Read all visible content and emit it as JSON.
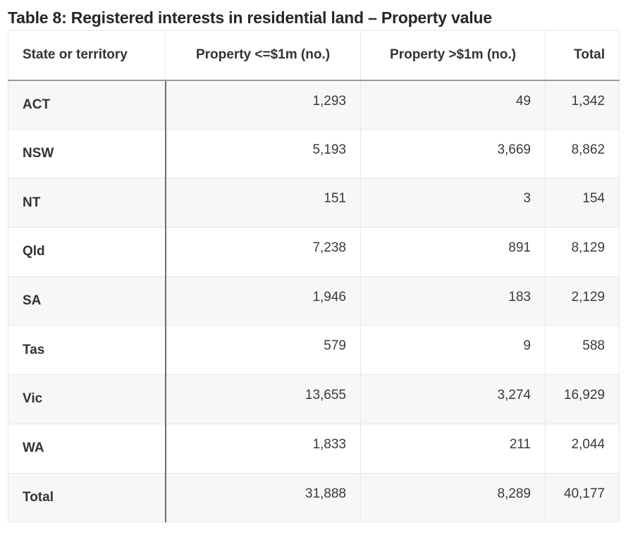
{
  "title": "Table 8: Registered interests in residential land – Property value",
  "table": {
    "headers": [
      "State or territory",
      "Property <=$1m (no.)",
      "Property >$1m (no.)",
      "Total"
    ],
    "rows": [
      {
        "state": "ACT",
        "le1m": "1,293",
        "gt1m": "49",
        "total": "1,342"
      },
      {
        "state": "NSW",
        "le1m": "5,193",
        "gt1m": "3,669",
        "total": "8,862"
      },
      {
        "state": "NT",
        "le1m": "151",
        "gt1m": "3",
        "total": "154"
      },
      {
        "state": "Qld",
        "le1m": "7,238",
        "gt1m": "891",
        "total": "8,129"
      },
      {
        "state": "SA",
        "le1m": "1,946",
        "gt1m": "183",
        "total": "2,129"
      },
      {
        "state": "Tas",
        "le1m": "579",
        "gt1m": "9",
        "total": "588"
      },
      {
        "state": "Vic",
        "le1m": "13,655",
        "gt1m": "3,274",
        "total": "16,929"
      },
      {
        "state": "WA",
        "le1m": "1,833",
        "gt1m": "211",
        "total": "2,044"
      },
      {
        "state": "Total",
        "le1m": "31,888",
        "gt1m": "8,289",
        "total": "40,177"
      }
    ]
  }
}
